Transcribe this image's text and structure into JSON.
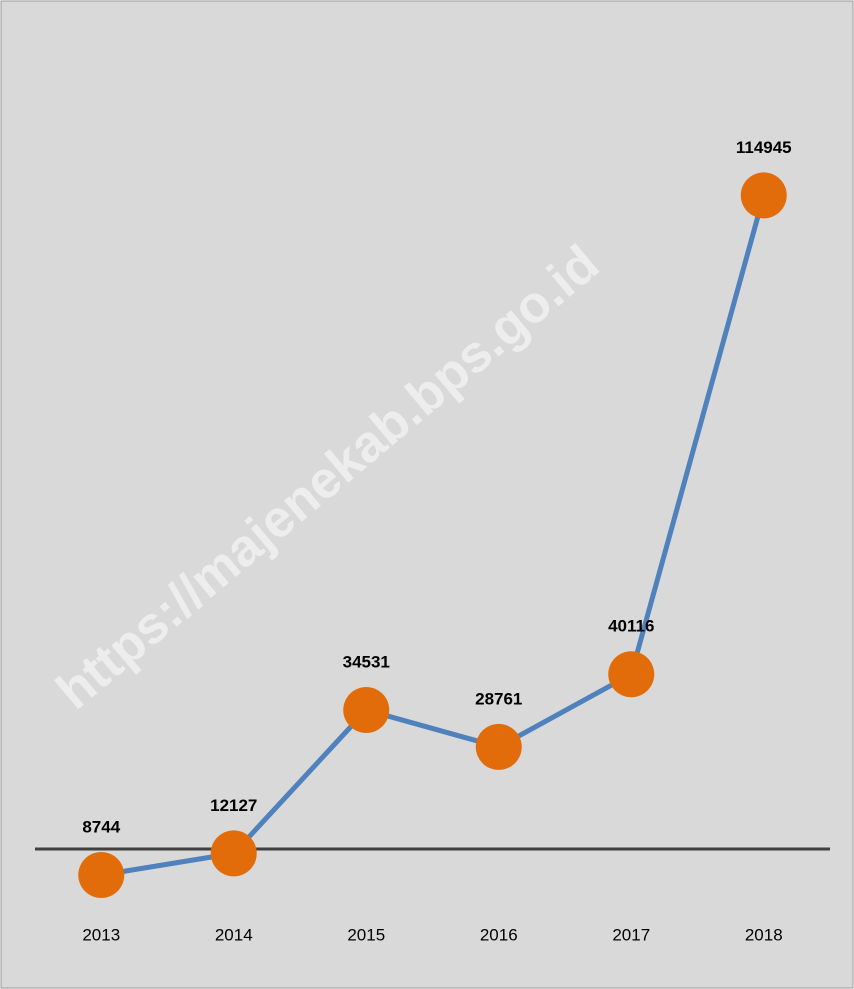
{
  "chart_data": {
    "type": "line",
    "watermark": "https://majenekab.bps.go.id",
    "categories": [
      "2013",
      "2014",
      "2015",
      "2016",
      "2017",
      "2018"
    ],
    "series": [
      {
        "name": null,
        "line_color": "#4f81bd",
        "color": "#e36c0a",
        "values": [
          8744,
          12127,
          34531,
          28761,
          40116,
          114945
        ]
      }
    ],
    "ylim": [
      0,
      140000
    ],
    "grid": false
  }
}
